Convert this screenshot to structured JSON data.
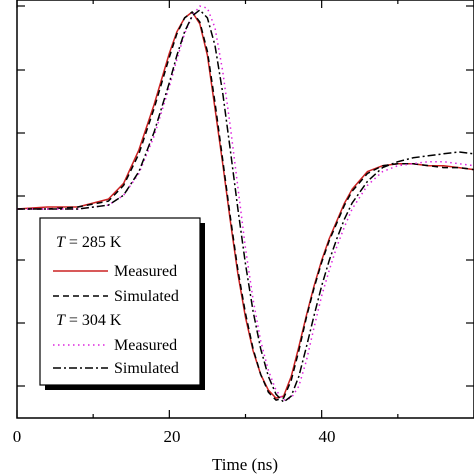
{
  "chart_data": {
    "type": "line",
    "xlabel": "Time (ns)",
    "ylabel": "",
    "xlim": [
      0,
      60
    ],
    "ylim": [
      -1.0,
      1.0
    ],
    "x_ticks": [
      "0",
      "20",
      "40"
    ],
    "x_tick_values": [
      0,
      20,
      40
    ],
    "grid": false,
    "legend_position": "lower-left",
    "legend": {
      "groups": [
        {
          "heading_var": "T",
          "heading_rest": " = 285 K"
        },
        {
          "heading_var": "T",
          "heading_rest": " = 304 K"
        }
      ]
    },
    "series": [
      {
        "name": "Measured",
        "group": 0,
        "color": "#cc2222",
        "dash": "solid",
        "x": [
          0,
          4,
          8,
          12,
          14,
          16,
          18,
          20,
          21,
          22,
          23,
          24,
          25,
          26,
          27,
          28,
          29,
          30,
          31,
          32,
          33,
          34,
          35,
          36,
          37,
          38,
          39,
          40,
          41,
          42,
          43,
          44,
          46,
          48,
          50,
          52,
          54,
          56,
          58,
          60
        ],
        "y": [
          0.0,
          0.01,
          0.01,
          0.05,
          0.13,
          0.3,
          0.53,
          0.79,
          0.9,
          0.97,
          1.0,
          0.94,
          0.78,
          0.51,
          0.23,
          -0.06,
          -0.33,
          -0.55,
          -0.72,
          -0.84,
          -0.92,
          -0.96,
          -0.95,
          -0.85,
          -0.7,
          -0.54,
          -0.39,
          -0.26,
          -0.15,
          -0.06,
          0.03,
          0.1,
          0.19,
          0.22,
          0.23,
          0.23,
          0.22,
          0.22,
          0.21,
          0.2
        ]
      },
      {
        "name": "Simulated",
        "group": 0,
        "color": "#000000",
        "dash": "dashed",
        "x": [
          0,
          4,
          8,
          12,
          14,
          16,
          18,
          20,
          21,
          22,
          23,
          24,
          25,
          26,
          27,
          28,
          29,
          30,
          31,
          32,
          33,
          34,
          35,
          36,
          37,
          38,
          39,
          40,
          41,
          42,
          43,
          44,
          46,
          48,
          50,
          52,
          54,
          56,
          58,
          60
        ],
        "y": [
          0.0,
          0.0,
          0.01,
          0.04,
          0.12,
          0.28,
          0.51,
          0.77,
          0.89,
          0.97,
          1.0,
          0.95,
          0.8,
          0.54,
          0.25,
          -0.04,
          -0.31,
          -0.53,
          -0.71,
          -0.84,
          -0.93,
          -0.97,
          -0.96,
          -0.87,
          -0.72,
          -0.55,
          -0.4,
          -0.27,
          -0.16,
          -0.07,
          0.02,
          0.09,
          0.18,
          0.22,
          0.23,
          0.23,
          0.22,
          0.21,
          0.21,
          0.2
        ]
      },
      {
        "name": "Measured",
        "group": 1,
        "color": "#dd22dd",
        "dash": "dotted",
        "x": [
          0,
          4,
          8,
          12,
          14,
          16,
          18,
          20,
          21,
          22,
          23,
          24,
          25,
          26,
          27,
          28,
          29,
          30,
          31,
          32,
          33,
          34,
          35,
          36,
          37,
          38,
          39,
          40,
          41,
          42,
          43,
          44,
          46,
          48,
          50,
          52,
          54,
          56,
          58,
          60
        ],
        "y": [
          0.0,
          0.0,
          0.0,
          0.02,
          0.07,
          0.18,
          0.37,
          0.62,
          0.76,
          0.89,
          0.98,
          1.03,
          1.02,
          0.92,
          0.7,
          0.42,
          0.11,
          -0.2,
          -0.46,
          -0.67,
          -0.82,
          -0.92,
          -0.97,
          -0.96,
          -0.9,
          -0.77,
          -0.6,
          -0.44,
          -0.31,
          -0.19,
          -0.09,
          0.0,
          0.12,
          0.19,
          0.22,
          0.23,
          0.24,
          0.24,
          0.23,
          0.22
        ]
      },
      {
        "name": "Simulated",
        "group": 1,
        "color": "#000000",
        "dash": "dashdot",
        "x": [
          0,
          4,
          8,
          12,
          14,
          16,
          18,
          20,
          21,
          22,
          23,
          24,
          25,
          26,
          27,
          28,
          29,
          30,
          31,
          32,
          33,
          34,
          35,
          36,
          37,
          38,
          39,
          40,
          41,
          42,
          43,
          44,
          46,
          48,
          50,
          52,
          54,
          56,
          58,
          60
        ],
        "y": [
          0.0,
          0.0,
          0.0,
          0.02,
          0.07,
          0.19,
          0.39,
          0.64,
          0.78,
          0.9,
          0.98,
          1.01,
          0.97,
          0.83,
          0.59,
          0.3,
          0.0,
          -0.28,
          -0.52,
          -0.71,
          -0.85,
          -0.94,
          -0.98,
          -0.95,
          -0.85,
          -0.7,
          -0.54,
          -0.39,
          -0.26,
          -0.15,
          -0.05,
          0.03,
          0.14,
          0.21,
          0.24,
          0.26,
          0.27,
          0.28,
          0.29,
          0.28
        ]
      }
    ]
  }
}
